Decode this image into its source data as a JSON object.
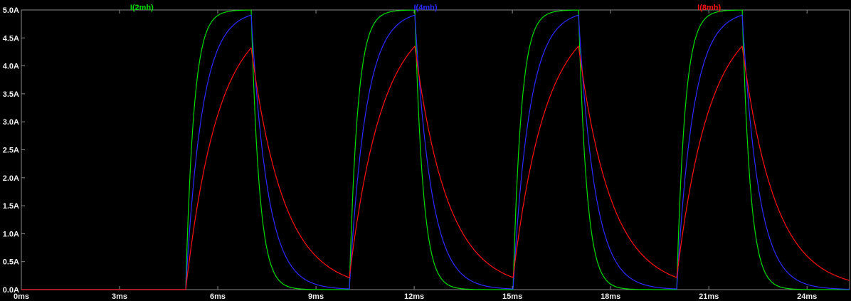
{
  "plot": {
    "background_color": "#000000",
    "axis_color": "#8a8a8a",
    "tick_label_color": "#f0f0f0"
  },
  "chart_data": {
    "type": "line",
    "title": "",
    "xlabel": "",
    "ylabel": "",
    "x_unit": "ms",
    "y_unit": "A",
    "xlim": [
      0,
      25.3
    ],
    "ylim": [
      0,
      5
    ],
    "grid": false,
    "legend_position": "top",
    "x_ticks": [
      {
        "v": 0,
        "label": "0ms"
      },
      {
        "v": 3,
        "label": "3ms"
      },
      {
        "v": 6,
        "label": "6ms"
      },
      {
        "v": 9,
        "label": "9ms"
      },
      {
        "v": 12,
        "label": "12ms"
      },
      {
        "v": 15,
        "label": "15ms"
      },
      {
        "v": 18,
        "label": "18ms"
      },
      {
        "v": 21,
        "label": "21ms"
      },
      {
        "v": 24,
        "label": "24ms"
      }
    ],
    "y_ticks": [
      {
        "v": 0.0,
        "label": "0.0A"
      },
      {
        "v": 0.5,
        "label": "0.5A"
      },
      {
        "v": 1.0,
        "label": "1.0A"
      },
      {
        "v": 1.5,
        "label": "1.5A"
      },
      {
        "v": 2.0,
        "label": "2.0A"
      },
      {
        "v": 2.5,
        "label": "2.5A"
      },
      {
        "v": 3.0,
        "label": "3.0A"
      },
      {
        "v": 3.5,
        "label": "3.5A"
      },
      {
        "v": 4.0,
        "label": "4.0A"
      },
      {
        "v": 4.5,
        "label": "4.5A"
      },
      {
        "v": 5.0,
        "label": "5.0A"
      }
    ],
    "excitation": {
      "type": "pulse-train",
      "first_rise_ms": 5,
      "on_time_ms": 2,
      "period_ms": 5,
      "cycles": 4,
      "steady_state_current_A": 5
    },
    "series": [
      {
        "name": "I(2mh)",
        "color": "#00dc00",
        "tau_ms": 0.25,
        "peak_A": 5.0,
        "valley_A": 0.0,
        "rise_start_times_ms": [
          5,
          10,
          15,
          20
        ],
        "peak_times_ms": [
          7,
          12,
          17,
          22
        ]
      },
      {
        "name": "I(4mh)",
        "color": "#2a2aff",
        "tau_ms": 0.5,
        "peak_A": 4.9,
        "valley_A": 0.01,
        "rise_start_times_ms": [
          5,
          10,
          15,
          20
        ],
        "peak_times_ms": [
          7,
          12,
          17,
          22
        ]
      },
      {
        "name": "I(8mh)",
        "color": "#ff1010",
        "tau_ms": 1.0,
        "peak_A": 4.33,
        "valley_A": 0.22,
        "rise_start_times_ms": [
          5,
          10,
          15,
          20
        ],
        "peak_times_ms": [
          7,
          12,
          17,
          22
        ]
      }
    ]
  }
}
